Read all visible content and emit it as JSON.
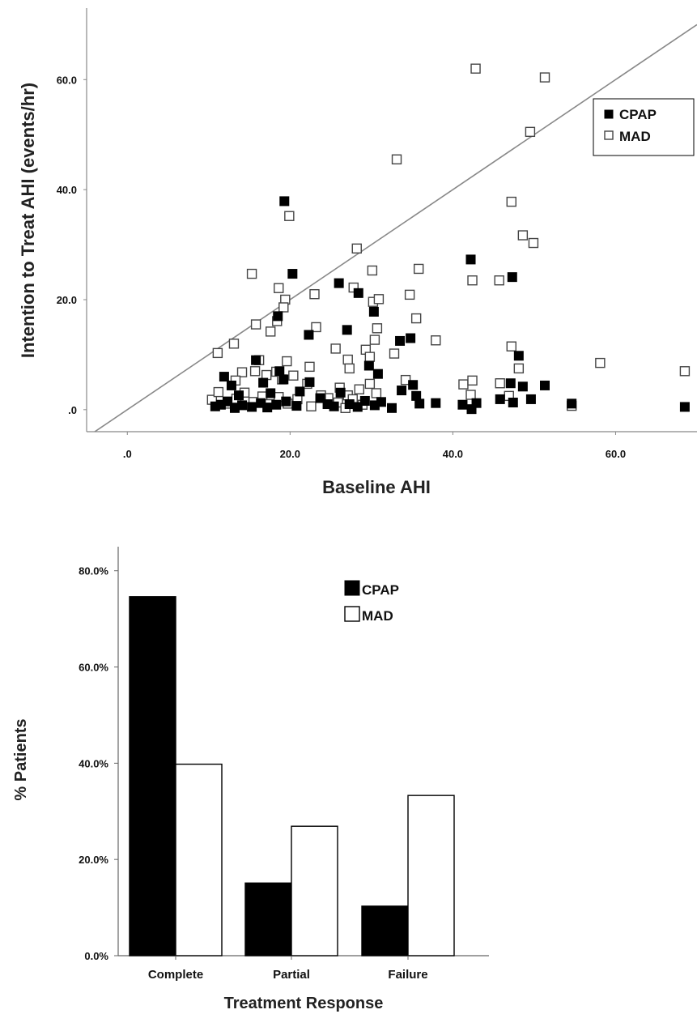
{
  "chart_data": [
    {
      "type": "scatter",
      "title": "",
      "xlabel": "Baseline AHI",
      "ylabel": "Intention to Treat  AHI (events/hr)",
      "xlim": [
        -5,
        70
      ],
      "ylim": [
        -4,
        73
      ],
      "x_ticks": [
        ".0",
        "20.0",
        "40.0",
        "60.0"
      ],
      "y_ticks": [
        ".0",
        "20.0",
        "40.0",
        "60.0"
      ],
      "reference_line": "y = x",
      "grid": false,
      "legend_position": "top-right",
      "legend": [
        "CPAP",
        "MAD"
      ],
      "series": [
        {
          "name": "CPAP",
          "color": "#000000",
          "points": [
            [
              19.3,
              37.9
            ],
            [
              20.3,
              24.7
            ],
            [
              18.5,
              17.0
            ],
            [
              22.3,
              13.6
            ],
            [
              26,
              23.0
            ],
            [
              27,
              14.5
            ],
            [
              28.4,
              21.2
            ],
            [
              30.3,
              17.8
            ],
            [
              33.5,
              12.5
            ],
            [
              34.8,
              13.0
            ],
            [
              42.2,
              27.3
            ],
            [
              47.3,
              24.1
            ],
            [
              48.1,
              9.8
            ],
            [
              29.7,
              8.0
            ],
            [
              30.8,
              6.5
            ],
            [
              33.7,
              3.5
            ],
            [
              35.1,
              4.5
            ],
            [
              35.5,
              2.5
            ],
            [
              37.9,
              1.2
            ],
            [
              10.8,
              0.6
            ],
            [
              11.5,
              0.9
            ],
            [
              12.3,
              1.5
            ],
            [
              13.2,
              0.3
            ],
            [
              14.1,
              0.8
            ],
            [
              15.3,
              0.5
            ],
            [
              16.4,
              1.2
            ],
            [
              17.2,
              0.4
            ],
            [
              18.3,
              0.9
            ],
            [
              19.5,
              1.5
            ],
            [
              20.8,
              0.7
            ],
            [
              11.9,
              6.0
            ],
            [
              12.8,
              4.4
            ],
            [
              13.7,
              2.6
            ],
            [
              15.8,
              9.0
            ],
            [
              16.7,
              4.9
            ],
            [
              17.6,
              3.0
            ],
            [
              18.7,
              7.0
            ],
            [
              19.2,
              5.5
            ],
            [
              21.2,
              3.3
            ],
            [
              22.4,
              5.0
            ],
            [
              23.7,
              2.1
            ],
            [
              24.6,
              1.0
            ],
            [
              25.4,
              0.6
            ],
            [
              26.2,
              3.1
            ],
            [
              27.3,
              1.0
            ],
            [
              28.3,
              0.5
            ],
            [
              29.2,
              1.6
            ],
            [
              30.4,
              0.8
            ],
            [
              31.2,
              1.4
            ],
            [
              32.5,
              0.3
            ],
            [
              35.9,
              1.1
            ],
            [
              41.2,
              0.9
            ],
            [
              42.3,
              0.1
            ],
            [
              42.9,
              1.2
            ],
            [
              45.8,
              1.9
            ],
            [
              47.1,
              4.8
            ],
            [
              47.4,
              1.3
            ],
            [
              48.6,
              4.2
            ],
            [
              49.6,
              1.9
            ],
            [
              51.3,
              4.4
            ],
            [
              54.6,
              1.1
            ],
            [
              68.5,
              0.5
            ]
          ]
        },
        {
          "name": "MAD",
          "color": "#ffffff",
          "points": [
            [
              42.8,
              62.0
            ],
            [
              51.3,
              60.4
            ],
            [
              49.5,
              50.5
            ],
            [
              33.1,
              45.5
            ],
            [
              47.2,
              37.8
            ],
            [
              48.6,
              31.7
            ],
            [
              49.9,
              30.3
            ],
            [
              19.9,
              35.2
            ],
            [
              28.2,
              29.3
            ],
            [
              30.1,
              25.3
            ],
            [
              35.8,
              25.6
            ],
            [
              42.4,
              23.5
            ],
            [
              45.7,
              23.5
            ],
            [
              15.3,
              24.7
            ],
            [
              18.6,
              22.1
            ],
            [
              23,
              21.0
            ],
            [
              27.8,
              22.2
            ],
            [
              34.7,
              20.9
            ],
            [
              19.4,
              20.0
            ],
            [
              30.2,
              19.6
            ],
            [
              30.9,
              20.1
            ],
            [
              15.8,
              15.5
            ],
            [
              19.2,
              18.6
            ],
            [
              18.4,
              16.1
            ],
            [
              17.6,
              14.2
            ],
            [
              23.2,
              15.0
            ],
            [
              30.7,
              14.8
            ],
            [
              35.5,
              16.6
            ],
            [
              13.1,
              12.0
            ],
            [
              11.1,
              10.3
            ],
            [
              37.9,
              12.6
            ],
            [
              30.4,
              12.7
            ],
            [
              32.8,
              10.2
            ],
            [
              29.3,
              10.9
            ],
            [
              29.8,
              9.6
            ],
            [
              25.6,
              11.1
            ],
            [
              47.2,
              11.5
            ],
            [
              58.1,
              8.5
            ],
            [
              68.5,
              7.0
            ],
            [
              19.6,
              8.8
            ],
            [
              22.4,
              7.8
            ],
            [
              27.1,
              9.1
            ],
            [
              27.3,
              7.5
            ],
            [
              16.2,
              9.0
            ],
            [
              14.1,
              6.8
            ],
            [
              13.3,
              5.3
            ],
            [
              15.7,
              7.0
            ],
            [
              17.1,
              6.3
            ],
            [
              18.3,
              6.9
            ],
            [
              19.0,
              5.5
            ],
            [
              20.4,
              6.2
            ],
            [
              22.1,
              4.7
            ],
            [
              24.7,
              2.1
            ],
            [
              26.1,
              4.0
            ],
            [
              27.1,
              2.6
            ],
            [
              28.5,
              3.7
            ],
            [
              29.8,
              4.7
            ],
            [
              30.6,
              3.0
            ],
            [
              34.2,
              5.4
            ],
            [
              41.3,
              4.6
            ],
            [
              42.4,
              5.3
            ],
            [
              45.8,
              4.8
            ],
            [
              46.9,
              2.5
            ],
            [
              48.1,
              7.5
            ],
            [
              10.4,
              1.8
            ],
            [
              11.2,
              3.2
            ],
            [
              12.4,
              1.1
            ],
            [
              13.4,
              2.0
            ],
            [
              14.4,
              3.1
            ],
            [
              15.5,
              1.4
            ],
            [
              16.6,
              2.4
            ],
            [
              17.5,
              1.0
            ],
            [
              18.6,
              2.3
            ],
            [
              19.7,
              1.1
            ],
            [
              20.9,
              1.9
            ],
            [
              22.6,
              0.6
            ],
            [
              23.8,
              2.6
            ],
            [
              25.9,
              1.3
            ],
            [
              26.8,
              0.3
            ],
            [
              27.7,
              1.9
            ],
            [
              28.9,
              0.9
            ],
            [
              42.2,
              2.7
            ],
            [
              54.6,
              0.7
            ]
          ]
        }
      ]
    },
    {
      "type": "bar",
      "title": "",
      "xlabel": "Treatment Response",
      "ylabel": "% Patients",
      "ylim": [
        0,
        85
      ],
      "y_ticks": [
        "0.0%",
        "20.0%",
        "40.0%",
        "60.0%",
        "80.0%"
      ],
      "categories": [
        "Complete",
        "Partial",
        "Failure"
      ],
      "grid": false,
      "legend_position": "top-center",
      "legend": [
        "CPAP",
        "MAD"
      ],
      "series": [
        {
          "name": "CPAP",
          "color": "#000000",
          "values": [
            74.6,
            15.1,
            10.3
          ]
        },
        {
          "name": "MAD",
          "color": "#ffffff",
          "values": [
            39.8,
            26.9,
            33.3
          ]
        }
      ]
    }
  ]
}
